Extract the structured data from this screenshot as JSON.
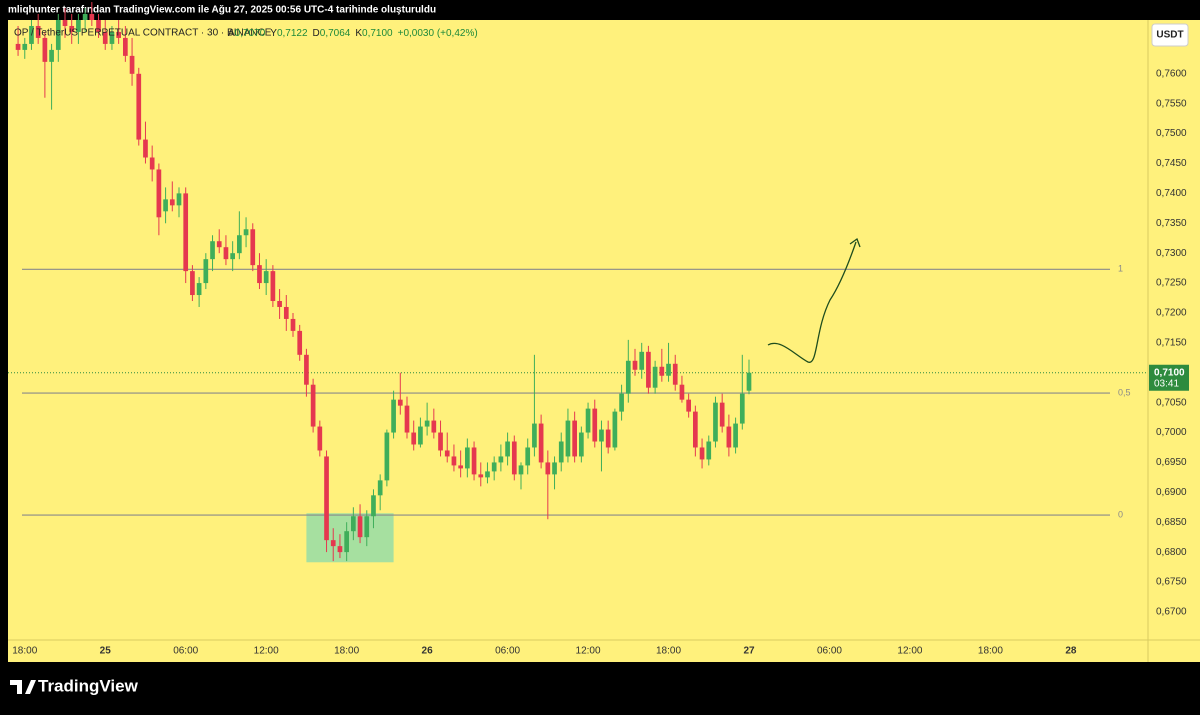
{
  "header": {
    "caption": "mliqhunter tarafından TradingView.com ile Ağu 27, 2025 00:56 UTC-4 tarihinde oluşturuldu"
  },
  "chart_data": {
    "type": "candlestick",
    "symbol": "OP / TetherUS PERPETUAL CONTRACT · 30 · BINANCE",
    "ohlc_legend": [
      {
        "key": "A",
        "value": "0,7070"
      },
      {
        "key": "Y",
        "value": "0,7122"
      },
      {
        "key": "D",
        "value": "0,7064"
      },
      {
        "key": "K",
        "value": "0,7100"
      }
    ],
    "change": "+0,0030 (+0,42%)",
    "currency": "USDT",
    "up_color": "#3fae5a",
    "down_color": "#e5384f",
    "ohlc": [
      [
        0.765,
        0.768,
        0.763,
        0.764
      ],
      [
        0.764,
        0.766,
        0.7625,
        0.765
      ],
      [
        0.765,
        0.769,
        0.764,
        0.768
      ],
      [
        0.768,
        0.77,
        0.765,
        0.766
      ],
      [
        0.766,
        0.767,
        0.756,
        0.762
      ],
      [
        0.762,
        0.765,
        0.754,
        0.764
      ],
      [
        0.764,
        0.77,
        0.762,
        0.769
      ],
      [
        0.769,
        0.771,
        0.766,
        0.768
      ],
      [
        0.768,
        0.77,
        0.765,
        0.767
      ],
      [
        0.767,
        0.77,
        0.765,
        0.769
      ],
      [
        0.769,
        0.771,
        0.767,
        0.77
      ],
      [
        0.77,
        0.772,
        0.768,
        0.769
      ],
      [
        0.769,
        0.77,
        0.766,
        0.767
      ],
      [
        0.767,
        0.769,
        0.764,
        0.765
      ],
      [
        0.765,
        0.768,
        0.764,
        0.767
      ],
      [
        0.767,
        0.769,
        0.765,
        0.766
      ],
      [
        0.766,
        0.768,
        0.762,
        0.763
      ],
      [
        0.763,
        0.766,
        0.758,
        0.76
      ],
      [
        0.76,
        0.761,
        0.748,
        0.749
      ],
      [
        0.749,
        0.752,
        0.745,
        0.746
      ],
      [
        0.746,
        0.748,
        0.742,
        0.744
      ],
      [
        0.744,
        0.745,
        0.733,
        0.736
      ],
      [
        0.737,
        0.741,
        0.735,
        0.739
      ],
      [
        0.739,
        0.742,
        0.737,
        0.738
      ],
      [
        0.738,
        0.741,
        0.736,
        0.74
      ],
      [
        0.74,
        0.741,
        0.725,
        0.727
      ],
      [
        0.727,
        0.728,
        0.722,
        0.723
      ],
      [
        0.723,
        0.726,
        0.721,
        0.725
      ],
      [
        0.725,
        0.73,
        0.724,
        0.729
      ],
      [
        0.729,
        0.733,
        0.727,
        0.732
      ],
      [
        0.732,
        0.734,
        0.73,
        0.731
      ],
      [
        0.731,
        0.733,
        0.728,
        0.729
      ],
      [
        0.729,
        0.732,
        0.727,
        0.73
      ],
      [
        0.73,
        0.737,
        0.729,
        0.733
      ],
      [
        0.733,
        0.736,
        0.731,
        0.734
      ],
      [
        0.734,
        0.735,
        0.727,
        0.728
      ],
      [
        0.728,
        0.73,
        0.724,
        0.725
      ],
      [
        0.725,
        0.729,
        0.723,
        0.727
      ],
      [
        0.727,
        0.728,
        0.721,
        0.722
      ],
      [
        0.722,
        0.724,
        0.719,
        0.721
      ],
      [
        0.721,
        0.723,
        0.717,
        0.719
      ],
      [
        0.719,
        0.72,
        0.716,
        0.717
      ],
      [
        0.717,
        0.718,
        0.712,
        0.713
      ],
      [
        0.713,
        0.714,
        0.706,
        0.708
      ],
      [
        0.708,
        0.709,
        0.7,
        0.701
      ],
      [
        0.701,
        0.702,
        0.696,
        0.697
      ],
      [
        0.696,
        0.697,
        0.68,
        0.682
      ],
      [
        0.682,
        0.684,
        0.6785,
        0.681
      ],
      [
        0.681,
        0.683,
        0.679,
        0.68
      ],
      [
        0.68,
        0.685,
        0.6785,
        0.6835
      ],
      [
        0.6835,
        0.6875,
        0.682,
        0.686
      ],
      [
        0.686,
        0.688,
        0.6815,
        0.6825
      ],
      [
        0.6825,
        0.687,
        0.681,
        0.686
      ],
      [
        0.686,
        0.6905,
        0.684,
        0.6895
      ],
      [
        0.6895,
        0.693,
        0.687,
        0.692
      ],
      [
        0.692,
        0.7005,
        0.691,
        0.7
      ],
      [
        0.7,
        0.707,
        0.699,
        0.7055
      ],
      [
        0.7055,
        0.71,
        0.703,
        0.7045
      ],
      [
        0.7045,
        0.706,
        0.699,
        0.7
      ],
      [
        0.7,
        0.702,
        0.697,
        0.698
      ],
      [
        0.698,
        0.7025,
        0.6975,
        0.701
      ],
      [
        0.701,
        0.705,
        0.6995,
        0.702
      ],
      [
        0.702,
        0.704,
        0.699,
        0.7
      ],
      [
        0.7,
        0.702,
        0.696,
        0.697
      ],
      [
        0.697,
        0.7,
        0.695,
        0.696
      ],
      [
        0.696,
        0.698,
        0.6935,
        0.6945
      ],
      [
        0.6945,
        0.697,
        0.6925,
        0.694
      ],
      [
        0.694,
        0.699,
        0.6925,
        0.6975
      ],
      [
        0.6975,
        0.6985,
        0.692,
        0.693
      ],
      [
        0.693,
        0.695,
        0.691,
        0.6925
      ],
      [
        0.6925,
        0.695,
        0.6915,
        0.6935
      ],
      [
        0.6935,
        0.696,
        0.692,
        0.695
      ],
      [
        0.695,
        0.698,
        0.6935,
        0.696
      ],
      [
        0.696,
        0.7,
        0.6945,
        0.6985
      ],
      [
        0.6985,
        0.6995,
        0.692,
        0.693
      ],
      [
        0.693,
        0.695,
        0.6905,
        0.6945
      ],
      [
        0.6945,
        0.699,
        0.693,
        0.6975
      ],
      [
        0.6975,
        0.713,
        0.696,
        0.7015
      ],
      [
        0.7015,
        0.703,
        0.694,
        0.695
      ],
      [
        0.695,
        0.697,
        0.6855,
        0.693
      ],
      [
        0.693,
        0.696,
        0.6905,
        0.695
      ],
      [
        0.695,
        0.7,
        0.6935,
        0.6985
      ],
      [
        0.696,
        0.704,
        0.695,
        0.702
      ],
      [
        0.702,
        0.7035,
        0.695,
        0.696
      ],
      [
        0.696,
        0.701,
        0.695,
        0.7
      ],
      [
        0.7,
        0.705,
        0.699,
        0.704
      ],
      [
        0.704,
        0.7055,
        0.6975,
        0.6985
      ],
      [
        0.6985,
        0.702,
        0.6935,
        0.7005
      ],
      [
        0.7005,
        0.702,
        0.6965,
        0.6975
      ],
      [
        0.6975,
        0.704,
        0.697,
        0.7035
      ],
      [
        0.7035,
        0.708,
        0.702,
        0.7065
      ],
      [
        0.7065,
        0.7155,
        0.705,
        0.712
      ],
      [
        0.712,
        0.714,
        0.7095,
        0.7105
      ],
      [
        0.7105,
        0.715,
        0.709,
        0.7135
      ],
      [
        0.7135,
        0.7145,
        0.7065,
        0.7075
      ],
      [
        0.7075,
        0.712,
        0.7065,
        0.711
      ],
      [
        0.711,
        0.714,
        0.7085,
        0.7095
      ],
      [
        0.7095,
        0.715,
        0.7085,
        0.7115
      ],
      [
        0.7115,
        0.713,
        0.707,
        0.708
      ],
      [
        0.708,
        0.7095,
        0.705,
        0.7055
      ],
      [
        0.7055,
        0.7065,
        0.7025,
        0.7035
      ],
      [
        0.7035,
        0.7045,
        0.696,
        0.6975
      ],
      [
        0.6975,
        0.699,
        0.694,
        0.6955
      ],
      [
        0.6955,
        0.6995,
        0.6945,
        0.6985
      ],
      [
        0.6985,
        0.706,
        0.6975,
        0.705
      ],
      [
        0.705,
        0.7065,
        0.7,
        0.701
      ],
      [
        0.701,
        0.703,
        0.696,
        0.6975
      ],
      [
        0.6975,
        0.7025,
        0.6965,
        0.7015
      ],
      [
        0.7015,
        0.713,
        0.7005,
        0.7065
      ],
      [
        0.707,
        0.7122,
        0.7064,
        0.71
      ]
    ],
    "xlim": [
      -1.5,
      168.5
    ],
    "xticks": [
      {
        "value": 1,
        "label": "18:00"
      },
      {
        "value": 13,
        "label": "25"
      },
      {
        "value": 25,
        "label": "06:00"
      },
      {
        "value": 37,
        "label": "12:00"
      },
      {
        "value": 49,
        "label": "18:00"
      },
      {
        "value": 61,
        "label": "26"
      },
      {
        "value": 73,
        "label": "06:00"
      },
      {
        "value": 85,
        "label": "12:00"
      },
      {
        "value": 97,
        "label": "18:00"
      },
      {
        "value": 109,
        "label": "27"
      },
      {
        "value": 121,
        "label": "06:00"
      },
      {
        "value": 133,
        "label": "12:00"
      },
      {
        "value": 145,
        "label": "18:00"
      },
      {
        "value": 157,
        "label": "28"
      }
    ],
    "ylim": [
      0.6653,
      0.769
    ],
    "yticks": [
      {
        "value": 0.67,
        "label": "0,6700"
      },
      {
        "value": 0.675,
        "label": "0,6750"
      },
      {
        "value": 0.68,
        "label": "0,6800"
      },
      {
        "value": 0.685,
        "label": "0,6850"
      },
      {
        "value": 0.69,
        "label": "0,6900"
      },
      {
        "value": 0.695,
        "label": "0,6950"
      },
      {
        "value": 0.7,
        "label": "0,7000"
      },
      {
        "value": 0.705,
        "label": "0,7050"
      },
      {
        "value": 0.71,
        "label": "0,7100"
      },
      {
        "value": 0.715,
        "label": "0,7150"
      },
      {
        "value": 0.72,
        "label": "0,7200"
      },
      {
        "value": 0.725,
        "label": "0,7250"
      },
      {
        "value": 0.73,
        "label": "0,7300"
      },
      {
        "value": 0.735,
        "label": "0,7350"
      },
      {
        "value": 0.74,
        "label": "0,7400"
      },
      {
        "value": 0.745,
        "label": "0,7450"
      },
      {
        "value": 0.75,
        "label": "0,7500"
      },
      {
        "value": 0.755,
        "label": "0,7550"
      },
      {
        "value": 0.76,
        "label": "0,7600"
      }
    ],
    "levels": [
      {
        "value": 0.7273,
        "label": "1"
      },
      {
        "value": 0.7066,
        "label": "0,5"
      },
      {
        "value": 0.6862,
        "label": "0"
      }
    ],
    "last_price": {
      "value": 0.71,
      "label": "0,7100",
      "countdown": "03:41",
      "color": "#2e8b3e"
    },
    "zone": {
      "x": [
        43,
        56
      ],
      "y": [
        0.6865,
        0.6783
      ],
      "color": "#a6e0a0"
    }
  },
  "footer": {
    "brand": "TradingView"
  }
}
